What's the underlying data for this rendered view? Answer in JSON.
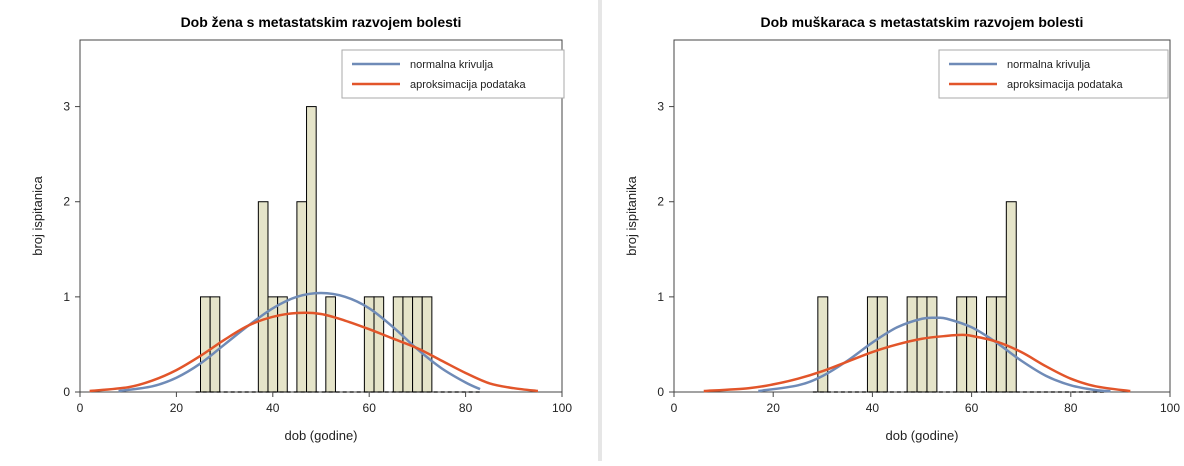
{
  "colors": {
    "normal": "#6f8bb7",
    "approx": "#e2552a",
    "bar_fill": "#e5e4c9",
    "bar_stroke": "#000000",
    "axis": "#444444"
  },
  "chart_data": [
    {
      "type": "bar",
      "title": "Dob žena s metastatskim razvojem bolesti",
      "xlabel": "dob (godine)",
      "ylabel": "broj ispitanica",
      "xlim": [
        0,
        100
      ],
      "ylim": [
        0,
        3.7
      ],
      "xticks": [
        0,
        20,
        40,
        60,
        80,
        100
      ],
      "yticks": [
        0,
        1,
        2,
        3
      ],
      "bin_width": 2,
      "bars": [
        {
          "x": 26,
          "y": 1
        },
        {
          "x": 28,
          "y": 1
        },
        {
          "x": 38,
          "y": 2
        },
        {
          "x": 40,
          "y": 1
        },
        {
          "x": 42,
          "y": 1
        },
        {
          "x": 46,
          "y": 2
        },
        {
          "x": 48,
          "y": 3
        },
        {
          "x": 52,
          "y": 1
        },
        {
          "x": 60,
          "y": 1
        },
        {
          "x": 62,
          "y": 1
        },
        {
          "x": 66,
          "y": 1
        },
        {
          "x": 68,
          "y": 1
        },
        {
          "x": 70,
          "y": 1
        },
        {
          "x": 72,
          "y": 1
        }
      ],
      "rug": [
        24,
        83
      ],
      "legend": [
        "normalna krivulja",
        "aproksimacija podataka"
      ],
      "legend_position": "top-right",
      "series": [
        {
          "name": "normalna krivulja",
          "x": [
            8,
            15,
            20,
            25,
            30,
            35,
            40,
            45,
            50,
            55,
            60,
            65,
            70,
            75,
            80,
            83
          ],
          "y": [
            0.01,
            0.06,
            0.15,
            0.3,
            0.5,
            0.7,
            0.88,
            1.0,
            1.04,
            1.0,
            0.88,
            0.68,
            0.45,
            0.25,
            0.1,
            0.03
          ]
        },
        {
          "name": "aproksimacija podataka",
          "x": [
            2,
            10,
            15,
            20,
            25,
            30,
            35,
            40,
            45,
            50,
            55,
            60,
            65,
            70,
            75,
            80,
            85,
            90,
            95
          ],
          "y": [
            0.01,
            0.05,
            0.12,
            0.23,
            0.38,
            0.55,
            0.7,
            0.79,
            0.83,
            0.82,
            0.75,
            0.66,
            0.56,
            0.46,
            0.33,
            0.2,
            0.09,
            0.04,
            0.01
          ]
        }
      ]
    },
    {
      "type": "bar",
      "title": "Dob muškaraca s metastatskim razvojem bolesti",
      "xlabel": "dob (godine)",
      "ylabel": "broj ispitanika",
      "xlim": [
        0,
        100
      ],
      "ylim": [
        0,
        3.7
      ],
      "xticks": [
        0,
        20,
        40,
        60,
        80,
        100
      ],
      "yticks": [
        0,
        1,
        2,
        3
      ],
      "bin_width": 2,
      "bars": [
        {
          "x": 30,
          "y": 1
        },
        {
          "x": 40,
          "y": 1
        },
        {
          "x": 42,
          "y": 1
        },
        {
          "x": 48,
          "y": 1
        },
        {
          "x": 50,
          "y": 1
        },
        {
          "x": 52,
          "y": 1
        },
        {
          "x": 58,
          "y": 1
        },
        {
          "x": 60,
          "y": 1
        },
        {
          "x": 64,
          "y": 1
        },
        {
          "x": 66,
          "y": 1
        },
        {
          "x": 68,
          "y": 2
        }
      ],
      "rug": [
        28,
        87
      ],
      "legend": [
        "normalna krivulja",
        "aproksimacija podataka"
      ],
      "legend_position": "top-right",
      "series": [
        {
          "name": "normalna krivulja",
          "x": [
            17,
            25,
            30,
            35,
            40,
            45,
            50,
            53,
            55,
            60,
            65,
            70,
            75,
            80,
            85,
            88
          ],
          "y": [
            0.01,
            0.07,
            0.17,
            0.33,
            0.52,
            0.68,
            0.77,
            0.78,
            0.77,
            0.68,
            0.52,
            0.33,
            0.17,
            0.07,
            0.02,
            0.01
          ]
        },
        {
          "name": "aproksimacija podataka",
          "x": [
            6,
            15,
            20,
            25,
            30,
            35,
            40,
            45,
            50,
            55,
            58,
            60,
            65,
            70,
            75,
            80,
            85,
            92
          ],
          "y": [
            0.01,
            0.04,
            0.08,
            0.14,
            0.22,
            0.32,
            0.42,
            0.5,
            0.56,
            0.59,
            0.6,
            0.59,
            0.53,
            0.42,
            0.27,
            0.14,
            0.06,
            0.01
          ]
        }
      ]
    }
  ]
}
